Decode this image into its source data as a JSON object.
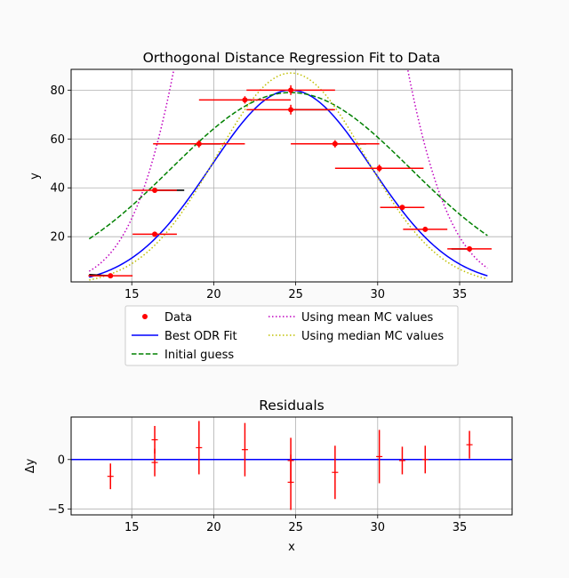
{
  "chart_data": [
    {
      "type": "line",
      "title": "Orthogonal Distance Regression Fit to Data",
      "xlabel": "",
      "ylabel": "y",
      "xlim": [
        11.3,
        38.2
      ],
      "ylim": [
        1.5,
        88.5
      ],
      "xticks": [
        15,
        20,
        25,
        30,
        35
      ],
      "yticks": [
        20,
        40,
        60,
        80
      ],
      "grid": true,
      "legend_placement": "below",
      "legend": [
        {
          "label": "Data",
          "style": "marker",
          "color": "#ff0000"
        },
        {
          "label": "Best ODR Fit",
          "style": "solid",
          "color": "#0000ff"
        },
        {
          "label": "Initial guess",
          "style": "dashed",
          "color": "#008000"
        },
        {
          "label": "Using mean MC values",
          "style": "dotted",
          "color": "#bf00bf"
        },
        {
          "label": "Using median MC values",
          "style": "dotted",
          "color": "#bfbf00"
        }
      ],
      "data_points": [
        {
          "x": 13.7,
          "y": 4,
          "xerr": 1.35,
          "yerr": 0.5,
          "fit_x": 12.4,
          "fit_y": 4.5
        },
        {
          "x": 16.4,
          "y": 39,
          "xerr": 1.35,
          "yerr": 1.0,
          "fit_x": 18.2,
          "fit_y": 39
        },
        {
          "x": 16.4,
          "y": 21,
          "xerr": 1.35,
          "yerr": 1.0,
          "fit_x": 16.4,
          "fit_y": 21
        },
        {
          "x": 19.1,
          "y": 58,
          "xerr": 2.8,
          "yerr": 1.5,
          "fit_x": 20.4,
          "fit_y": 58
        },
        {
          "x": 21.9,
          "y": 76,
          "xerr": 2.8,
          "yerr": 1.5,
          "fit_x": 22.3,
          "fit_y": 76
        },
        {
          "x": 24.7,
          "y": 80,
          "xerr": 2.7,
          "yerr": 2.0,
          "fit_x": 24.7,
          "fit_y": 80
        },
        {
          "x": 24.7,
          "y": 72,
          "xerr": 2.7,
          "yerr": 2.0,
          "fit_x": 27.3,
          "fit_y": 72
        },
        {
          "x": 27.4,
          "y": 58,
          "xerr": 2.7,
          "yerr": 1.5,
          "fit_x": 29.3,
          "fit_y": 58
        },
        {
          "x": 30.1,
          "y": 48,
          "xerr": 2.7,
          "yerr": 1.5,
          "fit_x": 30.0,
          "fit_y": 48
        },
        {
          "x": 31.5,
          "y": 32,
          "xerr": 1.35,
          "yerr": 1.0,
          "fit_x": 31.5,
          "fit_y": 32
        },
        {
          "x": 32.9,
          "y": 23,
          "xerr": 1.35,
          "yerr": 1.0,
          "fit_x": 32.9,
          "fit_y": 23
        },
        {
          "x": 35.6,
          "y": 15,
          "xerr": 1.35,
          "yerr": 1.0,
          "fit_x": 34.5,
          "fit_y": 15
        }
      ],
      "curves": [
        {
          "label": "Best ODR Fit",
          "model": "gaussian",
          "amplitude": 80,
          "mean": 24.7,
          "sigma": 4.9,
          "x_range": [
            12.4,
            36.7
          ],
          "color": "#0000ff",
          "style": "solid"
        },
        {
          "label": "Initial guess",
          "model": "gaussian",
          "amplitude": 79,
          "mean": 24.7,
          "sigma": 7.3,
          "x_range": [
            12.4,
            36.7
          ],
          "color": "#008000",
          "style": "dashed"
        },
        {
          "label": "Using mean MC values",
          "model": "gaussian",
          "amplitude": 350,
          "mean": 24.7,
          "sigma": 4.3,
          "x_range": [
            12.4,
            36.7
          ],
          "color": "#bf00bf",
          "style": "dotted"
        },
        {
          "label": "Using median MC values",
          "model": "gaussian",
          "amplitude": 87,
          "mean": 24.7,
          "sigma": 4.55,
          "x_range": [
            12.4,
            36.7
          ],
          "color": "#bfbf00",
          "style": "dotted"
        }
      ]
    },
    {
      "type": "scatter",
      "title": "Residuals",
      "xlabel": "x",
      "ylabel": "Δy",
      "xlim": [
        11.3,
        38.2
      ],
      "ylim": [
        -5.6,
        4.3
      ],
      "xticks": [
        15,
        20,
        25,
        30,
        35
      ],
      "yticks": [
        -5,
        0
      ],
      "grid": true,
      "zero_line_color": "#0000ff",
      "points": [
        {
          "x": 13.7,
          "y": -1.7,
          "yerr": 1.3
        },
        {
          "x": 16.4,
          "y": 2.0,
          "yerr": 1.4
        },
        {
          "x": 16.4,
          "y": -0.3,
          "yerr": 1.4
        },
        {
          "x": 19.1,
          "y": 1.2,
          "yerr": 2.7
        },
        {
          "x": 21.9,
          "y": 1.0,
          "yerr": 2.7
        },
        {
          "x": 24.7,
          "y": -0.1,
          "yerr": 2.3
        },
        {
          "x": 24.7,
          "y": -2.3,
          "yerr": 2.8
        },
        {
          "x": 27.4,
          "y": -1.3,
          "yerr": 2.7
        },
        {
          "x": 30.1,
          "y": 0.3,
          "yerr": 2.7
        },
        {
          "x": 31.5,
          "y": -0.1,
          "yerr": 1.4
        },
        {
          "x": 32.9,
          "y": 0.0,
          "yerr": 1.4
        },
        {
          "x": 35.6,
          "y": 1.5,
          "yerr": 1.4
        }
      ]
    }
  ]
}
